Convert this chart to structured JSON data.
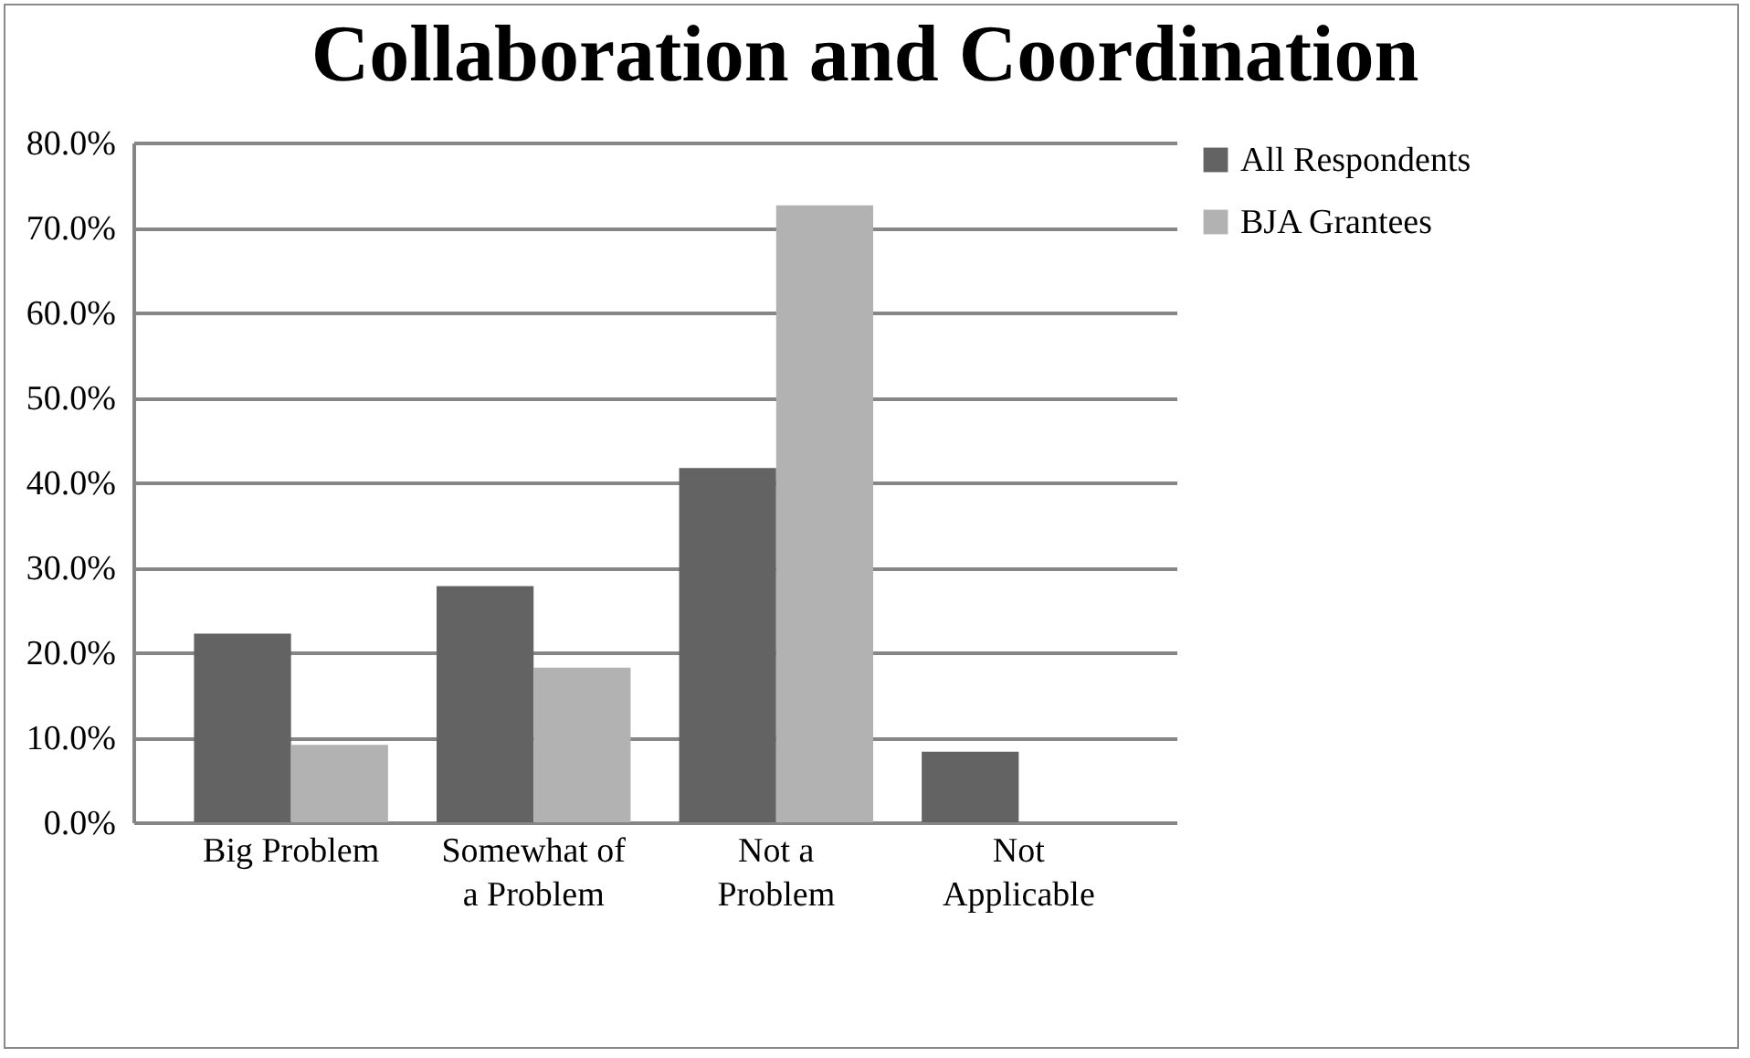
{
  "chart_data": {
    "type": "bar",
    "title": "Collaboration and Coordination",
    "categories": [
      "Big Problem",
      "Somewhat of a Problem",
      "Not a Problem",
      "Not Applicable"
    ],
    "series": [
      {
        "name": "All Respondents",
        "color": "#636363",
        "values": [
          22.2,
          27.8,
          41.7,
          8.3
        ]
      },
      {
        "name": "BJA Grantees",
        "color": "#b2b2b2",
        "values": [
          9.1,
          18.2,
          72.6,
          0
        ]
      }
    ],
    "ylim": [
      0,
      80
    ],
    "yticks": [
      {
        "value": 0,
        "label": "0.0%"
      },
      {
        "value": 10,
        "label": "10.0%"
      },
      {
        "value": 20,
        "label": "20.0%"
      },
      {
        "value": 30,
        "label": "30.0%"
      },
      {
        "value": 40,
        "label": "40.0%"
      },
      {
        "value": 50,
        "label": "50.0%"
      },
      {
        "value": 60,
        "label": "60.0%"
      },
      {
        "value": 70,
        "label": "70.0%"
      },
      {
        "value": 80,
        "label": "80.0%"
      }
    ],
    "grid": "y",
    "legend": "right"
  }
}
